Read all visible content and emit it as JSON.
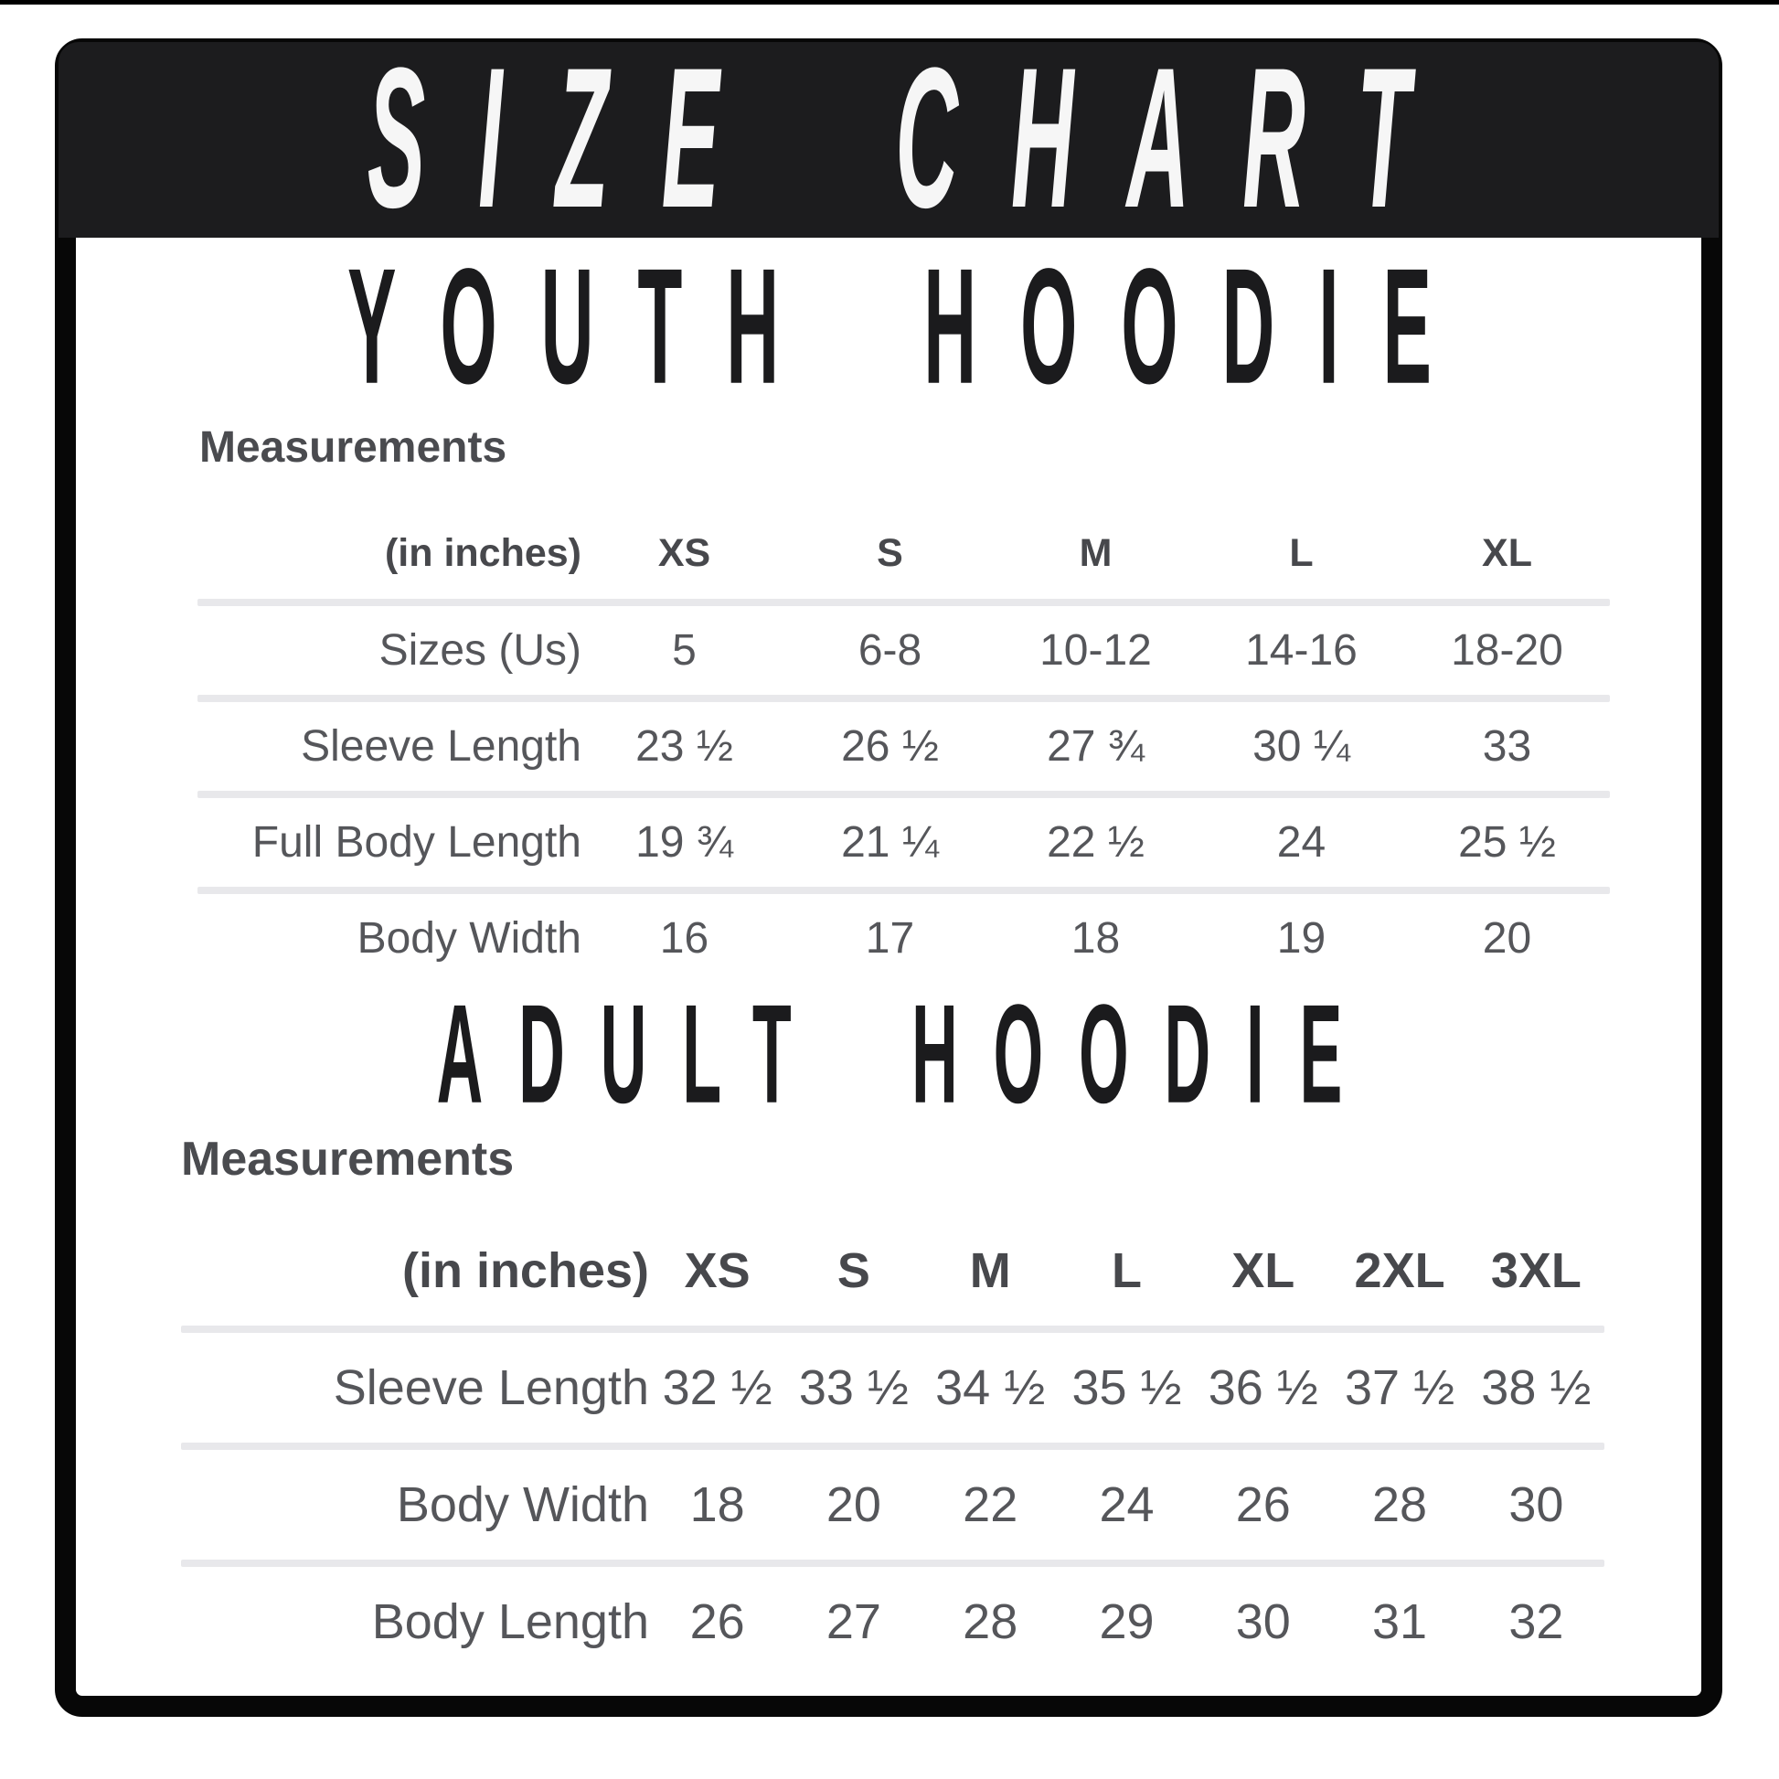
{
  "header": {
    "title": "SIZE CHART"
  },
  "youth": {
    "title": "YOUTH HOODIE",
    "measurements_label": "Measurements",
    "unit_label": "(in inches)",
    "columns": [
      "XS",
      "S",
      "M",
      "L",
      "XL"
    ],
    "rows": [
      {
        "label": "Sizes (Us)",
        "values": [
          "5",
          "6-8",
          "10-12",
          "14-16",
          "18-20"
        ]
      },
      {
        "label": "Sleeve Length",
        "values": [
          "23 ½",
          "26 ½",
          "27 ¾",
          "30 ¼",
          "33"
        ]
      },
      {
        "label": "Full Body Length",
        "values": [
          "19 ¾",
          "21 ¼",
          "22 ½",
          "24",
          "25 ½"
        ]
      },
      {
        "label": "Body Width",
        "values": [
          "16",
          "17",
          "18",
          "19",
          "20"
        ]
      }
    ]
  },
  "adult": {
    "title": "ADULT HOODIE",
    "measurements_label": "Measurements",
    "unit_label": "(in inches)",
    "columns": [
      "XS",
      "S",
      "M",
      "L",
      "XL",
      "2XL",
      "3XL"
    ],
    "rows": [
      {
        "label": "Sleeve Length",
        "values": [
          "32 ½",
          "33 ½",
          "34 ½",
          "35 ½",
          "36 ½",
          "37 ½",
          "38 ½"
        ]
      },
      {
        "label": "Body Width",
        "values": [
          "18",
          "20",
          "22",
          "24",
          "26",
          "28",
          "30"
        ]
      },
      {
        "label": "Body Length",
        "values": [
          "26",
          "27",
          "28",
          "29",
          "30",
          "31",
          "32"
        ]
      }
    ]
  },
  "colors": {
    "band_black": "#1c1c1e",
    "frame_black": "#070707",
    "title_black": "#1b1b1d",
    "table_text_gray": "#55565a",
    "header_text_gray": "#47484c",
    "separator_gray": "#e8e8eb",
    "header_text_white": "#f6f6f6"
  }
}
